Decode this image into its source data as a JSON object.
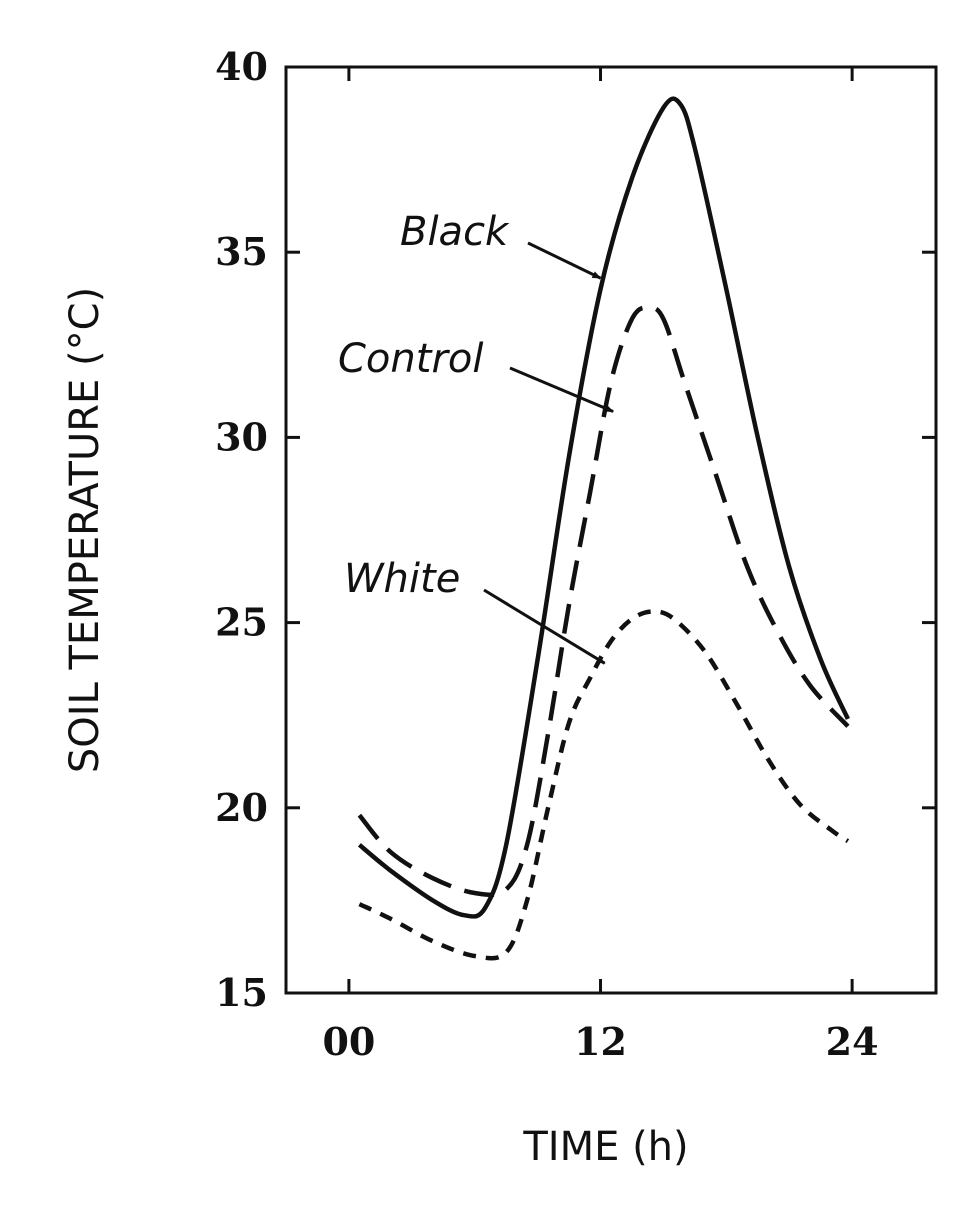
{
  "chart_data": {
    "type": "line",
    "title": "",
    "xlabel": "TIME (h)",
    "ylabel": "SOIL TEMPERATURE (°C)",
    "xlim": [
      -3,
      28
    ],
    "ylim": [
      15,
      40
    ],
    "x_ticks": [
      0,
      12,
      24
    ],
    "x_tick_labels": [
      "00",
      "12",
      "24"
    ],
    "y_ticks": [
      15,
      20,
      25,
      30,
      35,
      40
    ],
    "y_tick_labels": [
      "15",
      "20",
      "25",
      "30",
      "35",
      "40"
    ],
    "grid": false,
    "legend": "none",
    "series": [
      {
        "name": "Black",
        "style": "solid",
        "color": "#111111",
        "x": [
          0.5,
          2,
          4,
          5.5,
          6.5,
          7.5,
          9,
          10.5,
          12,
          13.5,
          15,
          15.8,
          16.5,
          18,
          19.5,
          21,
          22.5,
          23.8
        ],
        "y": [
          19.0,
          18.3,
          17.5,
          17.1,
          17.3,
          19.0,
          24.0,
          29.5,
          34.0,
          37.0,
          38.9,
          39.0,
          37.8,
          34.0,
          30.0,
          26.5,
          24.0,
          22.4
        ],
        "label_anchor": {
          "x": 12.0,
          "y": 34.3
        }
      },
      {
        "name": "Control",
        "style": "dashed",
        "color": "#111111",
        "x": [
          0.5,
          2,
          4,
          6,
          7.5,
          8.5,
          9.5,
          10.5,
          11.5,
          12.5,
          13.5,
          14.3,
          15,
          16,
          17.5,
          19,
          20.5,
          22,
          23.8
        ],
        "y": [
          19.8,
          18.8,
          18.1,
          17.7,
          17.8,
          19.0,
          22.0,
          25.5,
          28.5,
          31.5,
          33.2,
          33.5,
          33.2,
          31.5,
          29.0,
          26.5,
          24.7,
          23.3,
          22.2
        ],
        "label_anchor": {
          "x": 12.6,
          "y": 30.7
        }
      },
      {
        "name": "White",
        "style": "dotted",
        "color": "#111111",
        "x": [
          0.5,
          2,
          4,
          6,
          7.5,
          8.5,
          9.5,
          10.5,
          11.5,
          12.5,
          13.5,
          14.5,
          15.5,
          17,
          18.5,
          20,
          21.5,
          23,
          23.8
        ],
        "y": [
          17.4,
          17.0,
          16.4,
          16.0,
          16.1,
          17.5,
          20.0,
          22.3,
          23.5,
          24.5,
          25.1,
          25.3,
          25.1,
          24.2,
          22.8,
          21.3,
          20.1,
          19.4,
          19.1
        ],
        "label_anchor": {
          "x": 12.2,
          "y": 23.9
        }
      }
    ]
  }
}
